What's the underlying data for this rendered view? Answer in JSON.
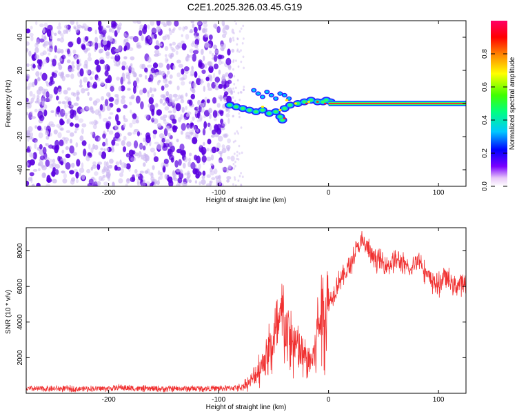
{
  "title": "C2E1.2025.326.03.45.G19",
  "colors": {
    "purple": "#5a00e0",
    "lavender": "#c9b3f0",
    "snr_line": "#f03030",
    "axis": "#000000"
  },
  "chart_data": [
    {
      "type": "heatmap",
      "name": "spectrogram",
      "xlabel": "Height of straight line (km)",
      "ylabel": "Frequency (Hz)",
      "xlim": [
        -275,
        125
      ],
      "ylim": [
        -50,
        50
      ],
      "xticks": [
        -200,
        -100,
        0,
        100
      ],
      "xtick_labels": [
        "-200",
        "-100",
        "0",
        "100"
      ],
      "yticks": [
        -40,
        -20,
        0,
        20,
        40
      ],
      "ytick_labels": [
        "-40",
        "-20",
        "0",
        "20",
        "40"
      ],
      "carrier": {
        "x_start": 0,
        "x_end": 125,
        "frequency_hz": 0
      },
      "noise_region_x": [
        -275,
        -87
      ],
      "transition_x": [
        -95,
        0
      ],
      "colorbar": {
        "label": "Normalized spectral amplitude",
        "range": [
          0,
          1
        ],
        "ticks": [
          0,
          0.2,
          0.4,
          0.6,
          0.8
        ],
        "tick_labels": [
          "0.0",
          "0.2",
          "0.4",
          "0.6",
          "0.8"
        ]
      }
    },
    {
      "type": "line",
      "name": "snr",
      "xlabel": "Height of straight line (km)",
      "ylabel": "SNR (10 * v/v)",
      "xlim": [
        -275,
        125
      ],
      "ylim": [
        0,
        9300
      ],
      "xticks": [
        -200,
        -100,
        0,
        100
      ],
      "xtick_labels": [
        "-200",
        "-100",
        "0",
        "100"
      ],
      "yticks": [
        2000,
        4000,
        6000,
        8000
      ],
      "ytick_labels": [
        "2000",
        "4000",
        "6000",
        "8000"
      ],
      "series": [
        {
          "name": "SNR",
          "x": [
            -275,
            -250,
            -225,
            -200,
            -190,
            -175,
            -150,
            -125,
            -100,
            -80,
            -70,
            -65,
            -60,
            -55,
            -50,
            -45,
            -42,
            -40,
            -38,
            -35,
            -30,
            -25,
            -20,
            -15,
            -12,
            -10,
            -5,
            0,
            5,
            10,
            15,
            20,
            25,
            30,
            35,
            40,
            45,
            50,
            55,
            60,
            65,
            70,
            75,
            80,
            85,
            90,
            95,
            100,
            105,
            110,
            115,
            120,
            125
          ],
          "values": [
            250,
            260,
            250,
            270,
            330,
            260,
            250,
            260,
            270,
            320,
            700,
            1200,
            1700,
            2300,
            2900,
            3700,
            4200,
            4000,
            3500,
            2900,
            2600,
            2300,
            1800,
            1900,
            2500,
            3800,
            4500,
            5000,
            5700,
            6400,
            6700,
            7200,
            8000,
            8500,
            8200,
            7600,
            7500,
            7300,
            7200,
            7500,
            7400,
            7100,
            6800,
            7600,
            7300,
            6500,
            6300,
            6000,
            6600,
            6300,
            6000,
            6200,
            6100
          ]
        }
      ]
    }
  ]
}
